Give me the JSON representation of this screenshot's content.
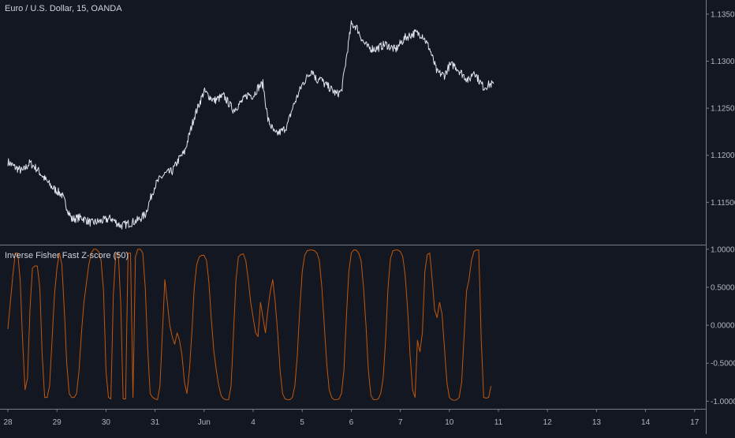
{
  "price_panel": {
    "legend": "Euro / U.S. Dollar, 15, OANDA",
    "y_ticks": [
      "1.13500",
      "1.13000",
      "1.12500",
      "1.12000",
      "1.11500"
    ]
  },
  "indicator_panel": {
    "legend": "Inverse Fisher Fast Z-score (50)",
    "y_ticks": [
      "1.00000",
      "0.50000",
      "0.00000",
      "-0.50000",
      "-1.00000"
    ]
  },
  "time_axis": {
    "labels": [
      "28",
      "29",
      "30",
      "31",
      "Jun",
      "4",
      "5",
      "6",
      "7",
      "10",
      "11",
      "12",
      "13",
      "14",
      "17"
    ]
  },
  "colors": {
    "background": "#131722",
    "price_line": "#e0e3eb",
    "indicator_line": "#ff6d00",
    "separator": "#787b86",
    "tick_text": "#b2b5be"
  },
  "chart_data": [
    {
      "type": "line",
      "title": "Euro / U.S. Dollar, 15, OANDA",
      "x_unit": "trading-day index (0 = May 28, 2019)",
      "ylim": [
        1.1105,
        1.1365
      ],
      "series": [
        {
          "x": [
            0,
            0.15,
            0.3,
            0.45,
            0.6,
            0.75,
            0.9,
            1.1,
            1.3,
            1.5,
            1.7,
            1.9,
            2.1,
            2.3,
            2.5,
            2.65,
            2.8,
            2.9,
            3.0,
            3.1,
            3.2,
            3.35,
            3.5,
            3.6,
            3.8,
            4.0,
            4.2,
            4.4,
            4.6,
            4.75,
            4.9,
            5.0,
            5.1,
            5.2,
            5.3,
            5.45,
            5.6,
            5.7,
            5.8,
            6.0,
            6.2,
            6.3,
            6.35,
            6.45,
            6.55,
            6.7,
            6.8,
            7.0,
            7.1,
            7.25,
            7.35,
            7.5,
            7.7,
            7.9,
            8.1,
            8.3,
            8.45,
            8.6,
            8.75,
            8.9,
            9.0,
            9.1,
            9.25,
            9.4,
            9.5,
            9.6,
            9.7,
            9.8,
            9.9
          ],
          "values": [
            1.1193,
            1.1187,
            1.1183,
            1.1192,
            1.1185,
            1.1175,
            1.1166,
            1.1158,
            1.1132,
            1.1134,
            1.1128,
            1.113,
            1.1133,
            1.1125,
            1.1128,
            1.1131,
            1.1137,
            1.1153,
            1.1168,
            1.1175,
            1.118,
            1.1183,
            1.1197,
            1.1203,
            1.1241,
            1.1268,
            1.1258,
            1.1263,
            1.1248,
            1.1256,
            1.1265,
            1.1263,
            1.1272,
            1.1276,
            1.1238,
            1.1222,
            1.1226,
            1.1232,
            1.125,
            1.1275,
            1.1291,
            1.1279,
            1.1283,
            1.1276,
            1.1272,
            1.1265,
            1.1268,
            1.1339,
            1.1337,
            1.132,
            1.1314,
            1.1313,
            1.1318,
            1.1312,
            1.1325,
            1.133,
            1.1328,
            1.1313,
            1.1288,
            1.1285,
            1.1295,
            1.1296,
            1.1287,
            1.1279,
            1.129,
            1.128,
            1.1272,
            1.1275,
            1.1276
          ]
        }
      ],
      "y_ticks": [
        1.135,
        1.13,
        1.125,
        1.12,
        1.115
      ],
      "grid": false,
      "legend_position": "top-left"
    },
    {
      "type": "line",
      "title": "Inverse Fisher Fast Z-score (50)",
      "x_unit": "trading-day index (0 = May 28, 2019)",
      "ylim": [
        -1.1,
        1.05
      ],
      "series": [
        {
          "x": [
            0,
            0.05,
            0.1,
            0.15,
            0.2,
            0.25,
            0.3,
            0.35,
            0.4,
            0.45,
            0.5,
            0.55,
            0.6,
            0.65,
            0.7,
            0.75,
            0.8,
            0.85,
            0.9,
            0.95,
            1.0,
            1.05,
            1.1,
            1.15,
            1.2,
            1.25,
            1.3,
            1.35,
            1.4,
            1.45,
            1.5,
            1.55,
            1.6,
            1.65,
            1.7,
            1.75,
            1.8,
            1.85,
            1.9,
            1.95,
            2.0,
            2.05,
            2.1,
            2.15,
            2.2,
            2.25,
            2.3,
            2.35,
            2.4,
            2.45,
            2.5,
            2.55,
            2.6,
            2.65,
            2.7,
            2.75,
            2.8,
            2.85,
            2.9,
            2.95,
            3.0,
            3.05,
            3.1,
            3.15,
            3.2,
            3.25,
            3.3,
            3.35,
            3.4,
            3.45,
            3.5,
            3.55,
            3.6,
            3.65,
            3.7,
            3.75,
            3.8,
            3.85,
            3.9,
            3.95,
            4.0,
            4.05,
            4.1,
            4.15,
            4.2,
            4.25,
            4.3,
            4.35,
            4.4,
            4.45,
            4.5,
            4.55,
            4.6,
            4.65,
            4.7,
            4.75,
            4.8,
            4.85,
            4.9,
            4.95,
            5.0,
            5.05,
            5.1,
            5.15,
            5.2,
            5.25,
            5.3,
            5.35,
            5.4,
            5.45,
            5.5,
            5.55,
            5.6,
            5.65,
            5.7,
            5.75,
            5.8,
            5.85,
            5.9,
            5.95,
            6.0,
            6.05,
            6.1,
            6.15,
            6.2,
            6.25,
            6.3,
            6.35,
            6.4,
            6.45,
            6.5,
            6.55,
            6.6,
            6.65,
            6.7,
            6.75,
            6.8,
            6.85,
            6.9,
            6.95,
            7.0,
            7.05,
            7.1,
            7.15,
            7.2,
            7.25,
            7.3,
            7.35,
            7.4,
            7.45,
            7.5,
            7.55,
            7.6,
            7.65,
            7.7,
            7.75,
            7.8,
            7.85,
            7.9,
            7.95,
            8.0,
            8.05,
            8.1,
            8.15,
            8.2,
            8.25,
            8.3,
            8.35,
            8.4,
            8.45,
            8.5,
            8.55,
            8.6,
            8.65,
            8.7,
            8.75,
            8.8,
            8.85,
            8.9,
            8.95,
            9.0,
            9.05,
            9.1,
            9.15,
            9.2,
            9.25,
            9.3,
            9.35,
            9.4,
            9.45,
            9.5,
            9.55,
            9.6,
            9.65,
            9.7,
            9.75,
            9.8,
            9.85
          ],
          "values": [
            -0.05,
            0.3,
            0.65,
            0.95,
            0.95,
            0.6,
            -0.2,
            -0.85,
            -0.7,
            0.2,
            0.75,
            0.78,
            0.78,
            0.5,
            -0.4,
            -0.95,
            -0.95,
            -0.8,
            -0.2,
            0.4,
            0.75,
            0.95,
            0.8,
            0.2,
            -0.5,
            -0.9,
            -0.95,
            -0.95,
            -0.9,
            -0.6,
            -0.1,
            0.3,
            0.55,
            0.8,
            0.95,
            1.0,
            1.0,
            0.97,
            0.85,
            0.45,
            -0.6,
            -0.95,
            -0.97,
            0.4,
            0.95,
            0.95,
            0.3,
            -0.97,
            -0.97,
            0.95,
            0.95,
            -0.95,
            0.9,
            1.0,
            1.0,
            0.95,
            0.5,
            -0.3,
            -0.9,
            -0.95,
            -0.97,
            -0.98,
            -0.8,
            -0.1,
            0.6,
            0.3,
            0.0,
            -0.15,
            -0.25,
            -0.1,
            -0.2,
            -0.4,
            -0.75,
            -0.9,
            -0.6,
            -0.1,
            0.5,
            0.8,
            0.9,
            0.92,
            0.92,
            0.85,
            0.55,
            0.05,
            -0.35,
            -0.6,
            -0.8,
            -0.93,
            -0.97,
            -0.98,
            -0.98,
            -0.8,
            -0.1,
            0.6,
            0.9,
            0.93,
            0.94,
            0.85,
            0.6,
            0.3,
            0.1,
            -0.1,
            -0.15,
            0.3,
            0.1,
            -0.1,
            0.2,
            0.45,
            0.6,
            0.3,
            -0.1,
            -0.6,
            -0.9,
            -0.97,
            -0.98,
            -0.98,
            -0.95,
            -0.8,
            -0.4,
            0.2,
            0.7,
            0.92,
            0.98,
            0.99,
            0.99,
            0.98,
            0.95,
            0.85,
            0.5,
            0.0,
            -0.5,
            -0.85,
            -0.95,
            -0.98,
            -0.98,
            -0.97,
            -0.9,
            -0.6,
            0.1,
            0.7,
            0.95,
            0.99,
            0.99,
            0.95,
            0.85,
            0.5,
            0.0,
            -0.6,
            -0.92,
            -0.98,
            -0.98,
            -0.97,
            -0.9,
            -0.7,
            -0.2,
            0.5,
            0.88,
            0.98,
            0.99,
            0.99,
            0.97,
            0.9,
            0.65,
            0.2,
            -0.4,
            -0.85,
            -0.95,
            -0.2,
            -0.35,
            -0.1,
            0.7,
            0.93,
            0.95,
            0.6,
            0.2,
            0.1,
            0.3,
            0.15,
            -0.3,
            -0.75,
            -0.95,
            -0.98,
            -0.99,
            -0.98,
            -0.95,
            -0.75,
            -0.15,
            0.45,
            0.6,
            0.85,
            0.97,
            0.99,
            0.99,
            -0.2,
            -0.95,
            -0.96,
            -0.95,
            -0.8
          ]
        }
      ],
      "y_ticks": [
        1.0,
        0.5,
        0.0,
        -0.5,
        -1.0
      ],
      "grid": false,
      "legend_position": "top-left"
    }
  ]
}
